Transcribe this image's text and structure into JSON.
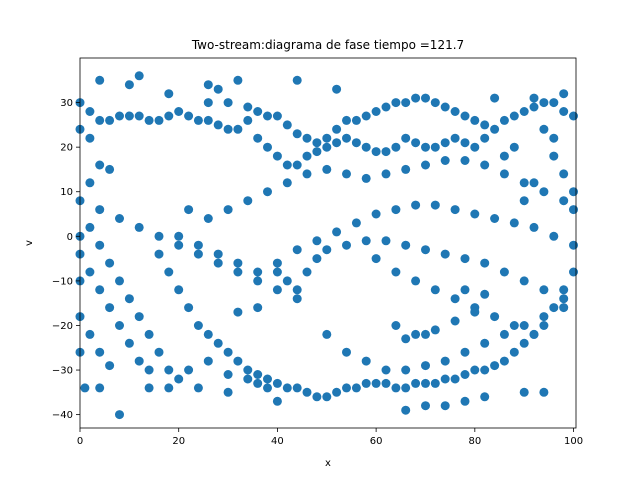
{
  "chart_data": {
    "type": "scatter",
    "title": "Two-stream:diagrama de fase  tiempo =121.7",
    "xlabel": "x",
    "ylabel": "v",
    "xlim": [
      0,
      100.5
    ],
    "ylim": [
      -43,
      40
    ],
    "xticks": [
      0,
      20,
      40,
      60,
      80,
      100
    ],
    "yticks": [
      -40,
      -30,
      -20,
      -10,
      0,
      10,
      20,
      30
    ],
    "xtick_labels": [
      "0",
      "20",
      "40",
      "60",
      "80",
      "100"
    ],
    "ytick_labels": [
      "−40",
      "−30",
      "−20",
      "−10",
      "0",
      "10",
      "20",
      "30"
    ],
    "grid": false,
    "color": "#1f77b4",
    "series": [
      {
        "points": [
          [
            0,
            30
          ],
          [
            2,
            28
          ],
          [
            4,
            26
          ],
          [
            6,
            26
          ],
          [
            8,
            27
          ],
          [
            10,
            27
          ],
          [
            12,
            27
          ],
          [
            14,
            26
          ],
          [
            16,
            26
          ],
          [
            18,
            27
          ],
          [
            20,
            28
          ],
          [
            22,
            27
          ],
          [
            24,
            26
          ],
          [
            26,
            26
          ],
          [
            28,
            25
          ],
          [
            30,
            24
          ],
          [
            32,
            24
          ],
          [
            34,
            26
          ],
          [
            36,
            28
          ],
          [
            38,
            27
          ],
          [
            40,
            27
          ],
          [
            42,
            25
          ],
          [
            44,
            23
          ],
          [
            46,
            22
          ],
          [
            48,
            21
          ],
          [
            50,
            20
          ],
          [
            52,
            21
          ],
          [
            54,
            22
          ],
          [
            56,
            21
          ],
          [
            58,
            20
          ],
          [
            60,
            19
          ],
          [
            62,
            19
          ],
          [
            64,
            20
          ],
          [
            66,
            22
          ],
          [
            68,
            21
          ],
          [
            70,
            20
          ],
          [
            72,
            20
          ],
          [
            74,
            21
          ],
          [
            76,
            22
          ],
          [
            78,
            21
          ],
          [
            80,
            20
          ],
          [
            82,
            22
          ],
          [
            84,
            24
          ],
          [
            86,
            26
          ],
          [
            88,
            27
          ],
          [
            90,
            28
          ],
          [
            92,
            29
          ],
          [
            94,
            30
          ],
          [
            96,
            30
          ],
          [
            98,
            28
          ],
          [
            100,
            27
          ],
          [
            4,
            35
          ],
          [
            10,
            34
          ],
          [
            12,
            36
          ],
          [
            18,
            32
          ],
          [
            26,
            34
          ],
          [
            32,
            35
          ],
          [
            44,
            35
          ],
          [
            52,
            33
          ],
          [
            68,
            31
          ],
          [
            84,
            31
          ],
          [
            92,
            31
          ],
          [
            98,
            32
          ],
          [
            0,
            24
          ],
          [
            2,
            22
          ],
          [
            4,
            16
          ],
          [
            6,
            15
          ],
          [
            2,
            12
          ],
          [
            0,
            8
          ],
          [
            4,
            6
          ],
          [
            8,
            4
          ],
          [
            12,
            2
          ],
          [
            16,
            0
          ],
          [
            20,
            -2
          ],
          [
            24,
            -4
          ],
          [
            28,
            -6
          ],
          [
            32,
            -8
          ],
          [
            36,
            -10
          ],
          [
            40,
            -12
          ],
          [
            44,
            -14
          ],
          [
            0,
            -4
          ],
          [
            2,
            -8
          ],
          [
            4,
            -12
          ],
          [
            6,
            -16
          ],
          [
            8,
            -20
          ],
          [
            10,
            -24
          ],
          [
            12,
            -28
          ],
          [
            14,
            -30
          ],
          [
            0,
            -18
          ],
          [
            2,
            -22
          ],
          [
            4,
            -26
          ],
          [
            6,
            -29
          ],
          [
            1,
            -34
          ],
          [
            4,
            -34
          ],
          [
            16,
            -4
          ],
          [
            18,
            -8
          ],
          [
            20,
            -12
          ],
          [
            22,
            -16
          ],
          [
            24,
            -20
          ],
          [
            26,
            -22
          ],
          [
            28,
            -24
          ],
          [
            30,
            -26
          ],
          [
            32,
            -28
          ],
          [
            34,
            -30
          ],
          [
            36,
            -31
          ],
          [
            38,
            -32
          ],
          [
            40,
            -33
          ],
          [
            42,
            -34
          ],
          [
            44,
            -34
          ],
          [
            46,
            -35
          ],
          [
            48,
            -36
          ],
          [
            50,
            -36
          ],
          [
            52,
            -35
          ],
          [
            54,
            -34
          ],
          [
            56,
            -34
          ],
          [
            58,
            -33
          ],
          [
            60,
            -33
          ],
          [
            62,
            -33
          ],
          [
            64,
            -34
          ],
          [
            66,
            -34
          ],
          [
            68,
            -33
          ],
          [
            70,
            -33
          ],
          [
            72,
            -33
          ],
          [
            74,
            -32
          ],
          [
            76,
            -32
          ],
          [
            78,
            -31
          ],
          [
            80,
            -30
          ],
          [
            82,
            -30
          ],
          [
            84,
            -29
          ],
          [
            86,
            -28
          ],
          [
            88,
            -26
          ],
          [
            90,
            -24
          ],
          [
            92,
            -22
          ],
          [
            94,
            -20
          ],
          [
            96,
            -16
          ],
          [
            98,
            -12
          ],
          [
            100,
            -8
          ],
          [
            14,
            -34
          ],
          [
            18,
            -34
          ],
          [
            24,
            -34
          ],
          [
            30,
            -35
          ],
          [
            36,
            -33
          ],
          [
            40,
            -37
          ],
          [
            66,
            -39
          ],
          [
            70,
            -38
          ],
          [
            74,
            -38
          ],
          [
            78,
            -37
          ],
          [
            82,
            -36
          ],
          [
            90,
            -35
          ],
          [
            94,
            -35
          ],
          [
            22,
            6
          ],
          [
            26,
            4
          ],
          [
            30,
            6
          ],
          [
            34,
            8
          ],
          [
            38,
            10
          ],
          [
            42,
            12
          ],
          [
            46,
            14
          ],
          [
            50,
            15
          ],
          [
            54,
            14
          ],
          [
            58,
            13
          ],
          [
            62,
            14
          ],
          [
            66,
            15
          ],
          [
            70,
            16
          ],
          [
            74,
            17
          ],
          [
            78,
            17
          ],
          [
            82,
            16
          ],
          [
            86,
            14
          ],
          [
            90,
            12
          ],
          [
            94,
            10
          ],
          [
            98,
            8
          ],
          [
            100,
            6
          ],
          [
            20,
            0
          ],
          [
            24,
            -2
          ],
          [
            28,
            -4
          ],
          [
            32,
            -6
          ],
          [
            36,
            -8
          ],
          [
            40,
            -6
          ],
          [
            44,
            -3
          ],
          [
            48,
            -1
          ],
          [
            52,
            1
          ],
          [
            56,
            3
          ],
          [
            60,
            5
          ],
          [
            64,
            6
          ],
          [
            68,
            7
          ],
          [
            72,
            7
          ],
          [
            76,
            6
          ],
          [
            80,
            5
          ],
          [
            84,
            4
          ],
          [
            88,
            3
          ],
          [
            92,
            2
          ],
          [
            96,
            0
          ],
          [
            100,
            -2
          ],
          [
            40,
            -8
          ],
          [
            42,
            -10
          ],
          [
            44,
            -12
          ],
          [
            46,
            -8
          ],
          [
            48,
            -5
          ],
          [
            50,
            -3
          ],
          [
            54,
            -2
          ],
          [
            58,
            -1
          ],
          [
            62,
            -1
          ],
          [
            66,
            -2
          ],
          [
            70,
            -3
          ],
          [
            74,
            -4
          ],
          [
            78,
            -5
          ],
          [
            82,
            -6
          ],
          [
            86,
            -8
          ],
          [
            90,
            -10
          ],
          [
            94,
            -12
          ],
          [
            98,
            -14
          ],
          [
            50,
            -22
          ],
          [
            54,
            -26
          ],
          [
            58,
            -28
          ],
          [
            62,
            -30
          ],
          [
            66,
            -30
          ],
          [
            70,
            -29
          ],
          [
            74,
            -28
          ],
          [
            78,
            -26
          ],
          [
            82,
            -24
          ],
          [
            86,
            -22
          ],
          [
            90,
            -20
          ],
          [
            94,
            -18
          ],
          [
            98,
            -16
          ],
          [
            60,
            -5
          ],
          [
            64,
            -8
          ],
          [
            68,
            -10
          ],
          [
            72,
            -12
          ],
          [
            76,
            -14
          ],
          [
            80,
            -16
          ],
          [
            84,
            -18
          ],
          [
            88,
            -20
          ],
          [
            92,
            -22
          ],
          [
            64,
            -20
          ],
          [
            68,
            -22
          ],
          [
            72,
            -21
          ],
          [
            76,
            -19
          ],
          [
            80,
            -17
          ],
          [
            66,
            -23
          ],
          [
            70,
            -22
          ],
          [
            78,
            -12
          ],
          [
            82,
            -13
          ],
          [
            96,
            18
          ],
          [
            98,
            14
          ],
          [
            100,
            10
          ],
          [
            96,
            22
          ],
          [
            94,
            24
          ],
          [
            92,
            12
          ],
          [
            90,
            8
          ],
          [
            88,
            20
          ],
          [
            86,
            18
          ],
          [
            0,
            0
          ],
          [
            0,
            -10
          ],
          [
            0,
            -26
          ],
          [
            2,
            2
          ],
          [
            4,
            -2
          ],
          [
            6,
            -6
          ],
          [
            8,
            -10
          ],
          [
            10,
            -14
          ],
          [
            12,
            -18
          ],
          [
            14,
            -22
          ],
          [
            16,
            -26
          ],
          [
            18,
            -30
          ],
          [
            26,
            30
          ],
          [
            30,
            30
          ],
          [
            34,
            29
          ],
          [
            28,
            33
          ],
          [
            36,
            22
          ],
          [
            38,
            20
          ],
          [
            40,
            18
          ],
          [
            42,
            16
          ],
          [
            44,
            16
          ],
          [
            46,
            18
          ],
          [
            48,
            19
          ],
          [
            50,
            22
          ],
          [
            52,
            24
          ],
          [
            54,
            26
          ],
          [
            56,
            26
          ],
          [
            58,
            27
          ],
          [
            60,
            28
          ],
          [
            62,
            29
          ],
          [
            64,
            30
          ],
          [
            66,
            30
          ],
          [
            70,
            31
          ],
          [
            72,
            30
          ],
          [
            74,
            29
          ],
          [
            76,
            28
          ],
          [
            78,
            27
          ],
          [
            80,
            26
          ],
          [
            82,
            25
          ],
          [
            8,
            -40
          ],
          [
            32,
            -17
          ],
          [
            36,
            -16
          ],
          [
            20,
            -32
          ],
          [
            22,
            -30
          ],
          [
            26,
            -28
          ],
          [
            30,
            -31
          ],
          [
            34,
            -32
          ],
          [
            38,
            -34
          ]
        ]
      }
    ]
  }
}
